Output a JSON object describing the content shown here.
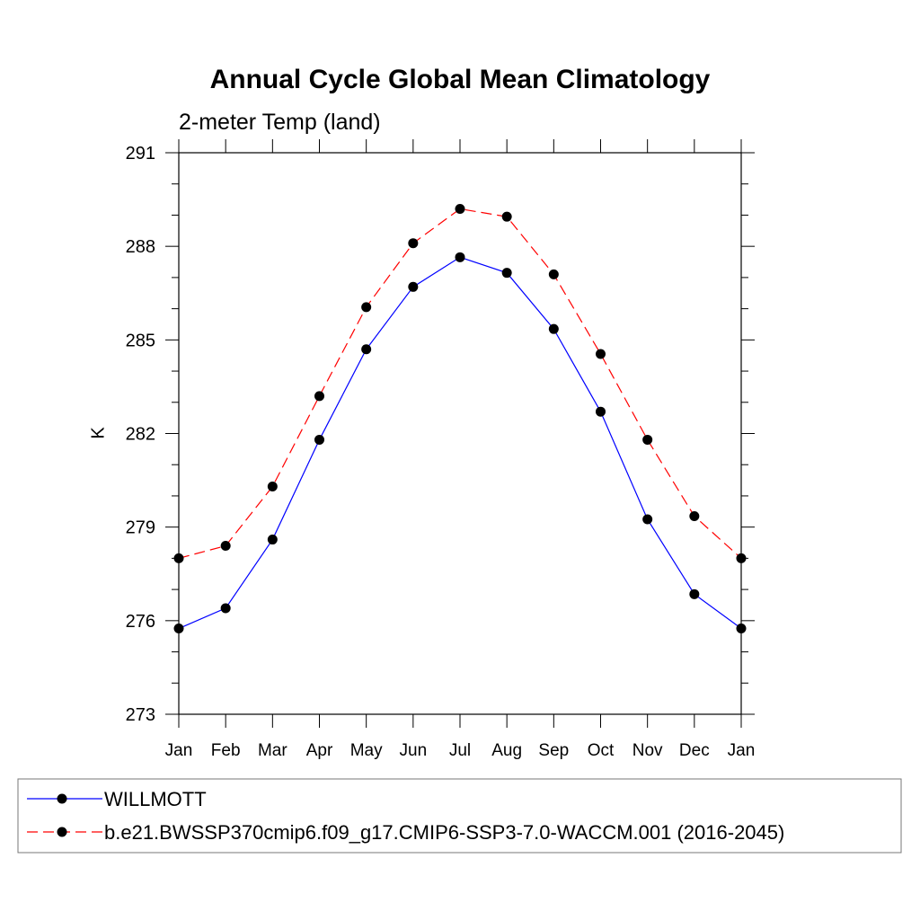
{
  "chart_data": {
    "type": "line",
    "title": "Annual Cycle Global Mean Climatology",
    "subtitle": "2-meter Temp (land)",
    "xlabel": "",
    "ylabel": "K",
    "categories": [
      "Jan",
      "Feb",
      "Mar",
      "Apr",
      "May",
      "Jun",
      "Jul",
      "Aug",
      "Sep",
      "Oct",
      "Nov",
      "Dec",
      "Jan"
    ],
    "ylim": [
      273,
      291
    ],
    "yticks": [
      273,
      276,
      279,
      282,
      285,
      288,
      291
    ],
    "ytick_labels": [
      "273",
      "276",
      "279",
      "282",
      "285",
      "288",
      "291"
    ],
    "grid": false,
    "legend_position": "bottom",
    "series": [
      {
        "name": "WILLMOTT",
        "color": "#0000ff",
        "dash": "solid",
        "marker": "circle",
        "values": [
          275.75,
          276.4,
          278.6,
          281.8,
          284.7,
          286.7,
          287.65,
          287.15,
          285.35,
          282.7,
          279.25,
          276.85,
          275.75
        ]
      },
      {
        "name": "b.e21.BWSSP370cmip6.f09_g17.CMIP6-SSP3-7.0-WACCM.001 (2016-2045)",
        "color": "#ff0000",
        "dash": "dashed",
        "marker": "circle",
        "values": [
          278.0,
          278.4,
          280.3,
          283.2,
          286.05,
          288.1,
          289.2,
          288.95,
          287.1,
          284.55,
          281.8,
          279.35,
          278.0
        ]
      }
    ]
  }
}
